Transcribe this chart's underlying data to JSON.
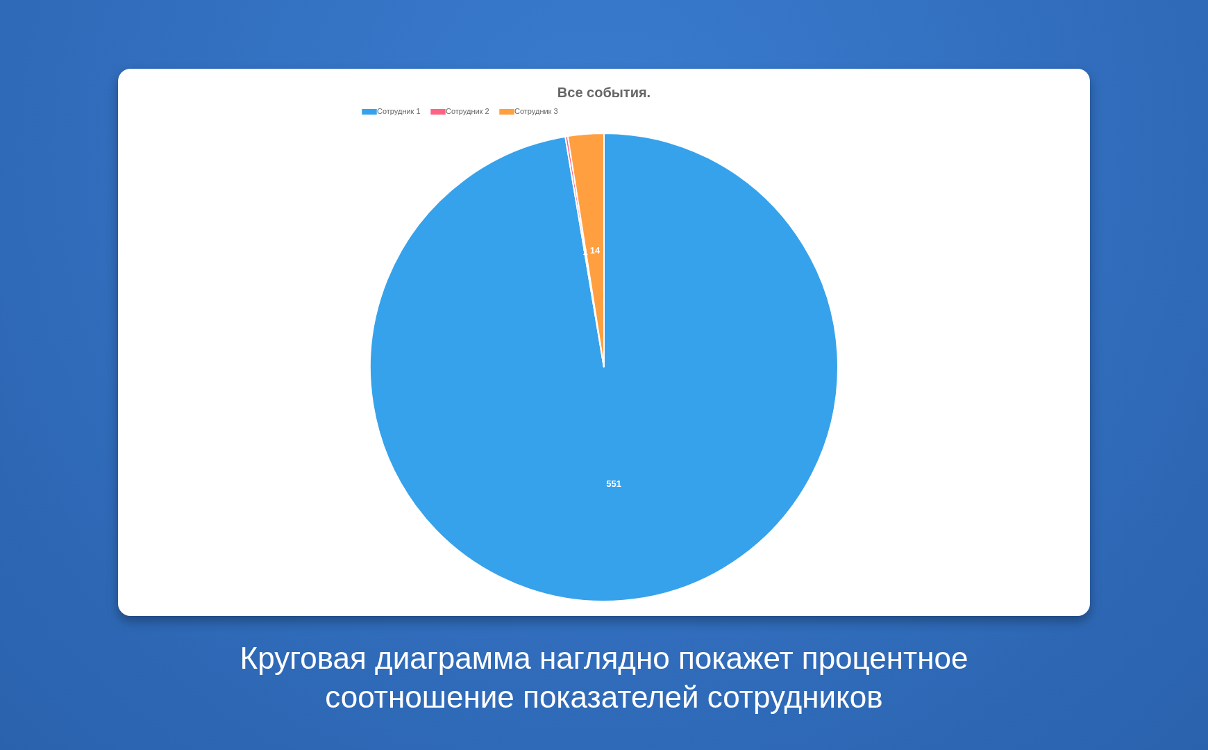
{
  "chart_data": {
    "type": "pie",
    "title": "Все события.",
    "categories": [
      "Сотрудник 1",
      "Сотрудник 2",
      "Сотрудник 3"
    ],
    "values": [
      551,
      1,
      14
    ],
    "colors": [
      "#36a2eb",
      "#ff6384",
      "#ff9f40"
    ],
    "data_labels": true,
    "legend": "top",
    "annotations": [
      "Круговая диаграмма наглядно покажет процентное соотношение показателей сотрудников"
    ]
  }
}
